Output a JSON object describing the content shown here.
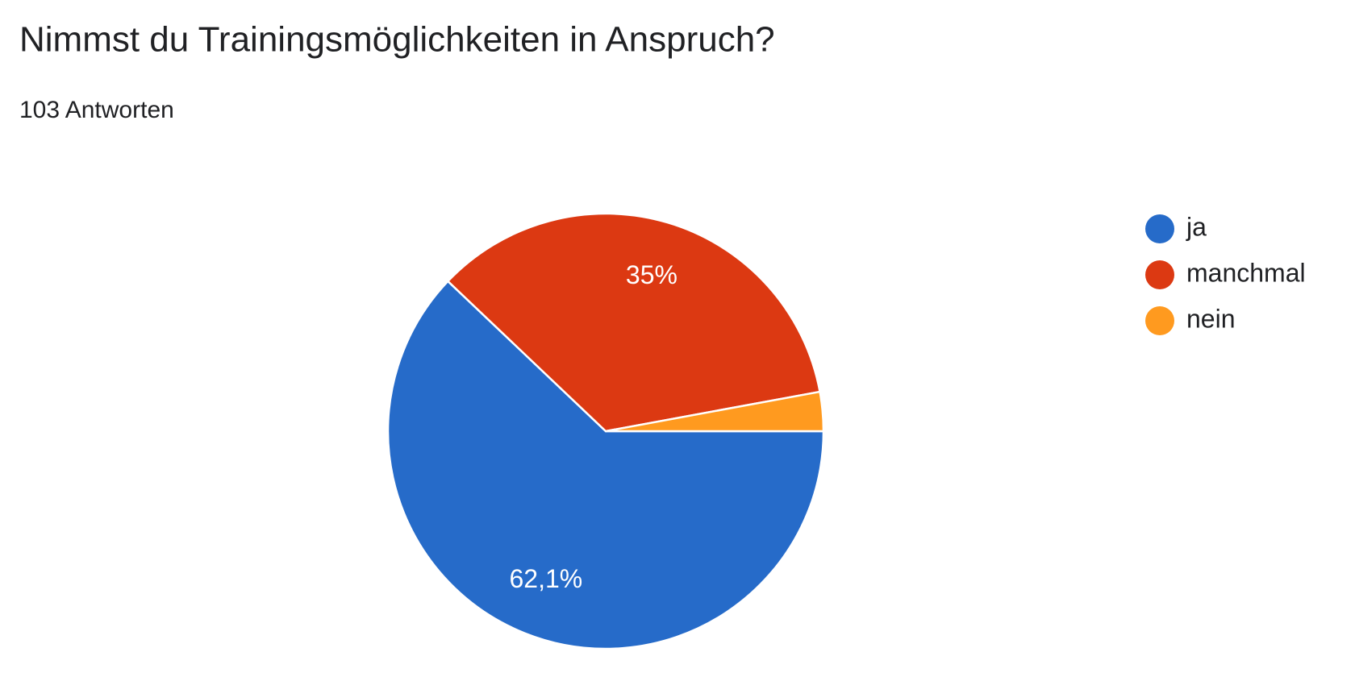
{
  "chart_data": {
    "type": "pie",
    "title": "Nimmst du Trainingsmöglichkeiten in Anspruch?",
    "subtitle": "103 Antworten",
    "categories": [
      "ja",
      "manchmal",
      "nein"
    ],
    "values": [
      62.1,
      35,
      2.9
    ],
    "value_labels": [
      "62,1%",
      "35%",
      null
    ],
    "colors": [
      "#266bc9",
      "#dc3912",
      "#ff9a1f"
    ],
    "legend": "right"
  }
}
